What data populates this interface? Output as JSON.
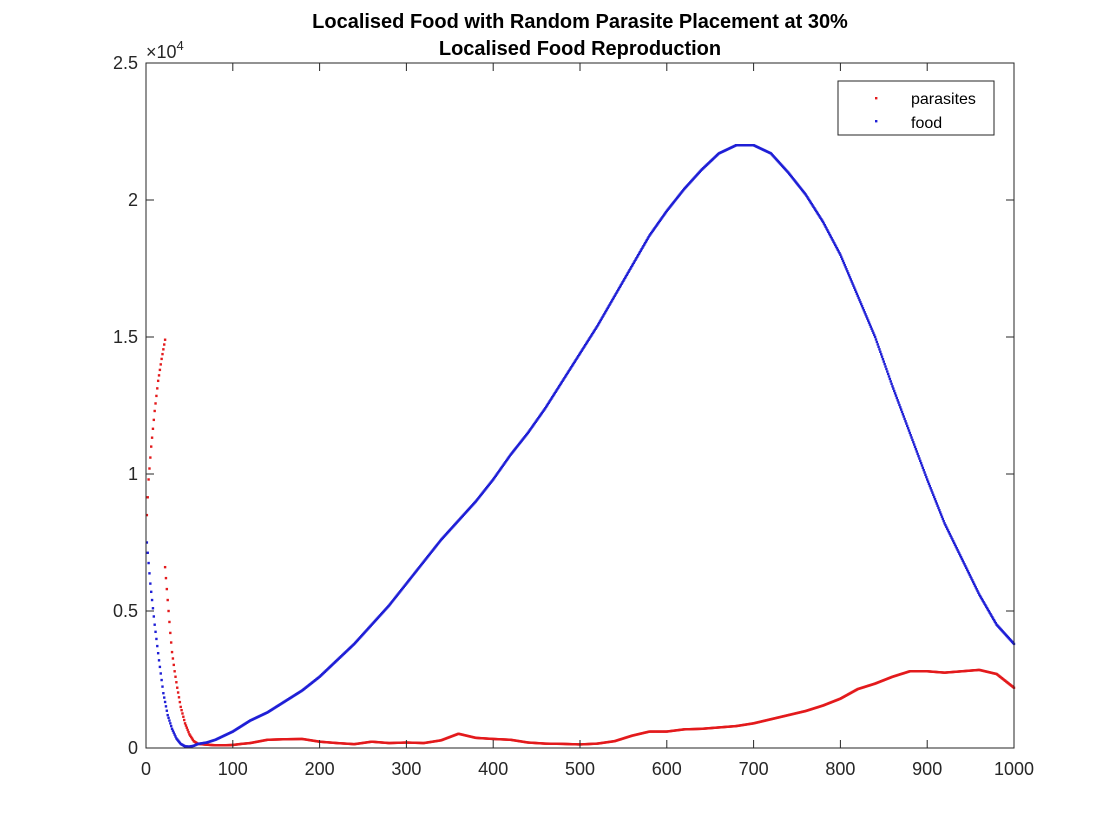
{
  "chart_data": {
    "type": "scatter",
    "title": "Localised Food with Random Parasite Placement at 30%",
    "subtitle": "Localised Food Reproduction",
    "xlabel": "",
    "ylabel": "",
    "xlim": [
      0,
      1000
    ],
    "ylim": [
      0,
      25000
    ],
    "x_ticks": [
      0,
      100,
      200,
      300,
      400,
      500,
      600,
      700,
      800,
      900,
      1000
    ],
    "x_tick_labels": [
      "0",
      "100",
      "200",
      "300",
      "400",
      "500",
      "600",
      "700",
      "800",
      "900",
      "1000"
    ],
    "y_ticks": [
      0,
      5000,
      10000,
      15000,
      20000,
      25000
    ],
    "y_tick_labels": [
      "0",
      "0.5",
      "1",
      "1.5",
      "2",
      "2.5"
    ],
    "y_exponent": {
      "base": "×10",
      "power": "4"
    },
    "grid": false,
    "legend_position": "top-right",
    "series": [
      {
        "name": "parasites",
        "color": "#e31a1c",
        "segments": [
          {
            "x": [
              1,
              3,
              6,
              10,
              14,
              18,
              22
            ],
            "y": [
              8500,
              9800,
              11000,
              12300,
              13400,
              14200,
              14900
            ]
          },
          {
            "x": [
              22,
              24,
              26,
              28,
              30,
              33,
              36,
              40,
              45,
              50,
              55,
              60,
              70,
              80,
              90,
              100,
              110,
              120,
              140,
              160,
              180,
              200,
              220,
              240,
              260,
              280,
              300,
              320,
              340,
              360,
              380,
              400,
              420,
              440,
              460,
              480,
              500,
              520,
              540,
              560,
              580,
              600,
              620,
              640,
              660,
              680,
              700,
              720,
              740,
              760,
              780,
              800,
              820,
              840,
              860,
              880,
              900,
              920,
              940,
              960,
              980,
              1000
            ],
            "y": [
              6600,
              5800,
              5000,
              4200,
              3500,
              2800,
              2200,
              1500,
              900,
              500,
              250,
              150,
              120,
              100,
              100,
              110,
              150,
              180,
              300,
              320,
              330,
              230,
              180,
              140,
              230,
              180,
              200,
              180,
              280,
              520,
              370,
              330,
              300,
              200,
              160,
              150,
              130,
              160,
              250,
              450,
              600,
              600,
              680,
              700,
              750,
              800,
              900,
              1050,
              1200,
              1350,
              1550,
              1800,
              2150,
              2350,
              2600,
              2800,
              2800,
              2750,
              2800,
              2850,
              2700,
              2200
            ]
          }
        ]
      },
      {
        "name": "food",
        "color": "#1f1fd6",
        "segments": [
          {
            "x": [
              1,
              5,
              10,
              15,
              20,
              25,
              30,
              35,
              40,
              45,
              50,
              55,
              60,
              70,
              80,
              90,
              100,
              110,
              120,
              140,
              160,
              180,
              200,
              220,
              240,
              260,
              280,
              300,
              320,
              340,
              360,
              380,
              400,
              420,
              440,
              460,
              480,
              500,
              520,
              540,
              560,
              580,
              600,
              620,
              640,
              660,
              680,
              700,
              720,
              740,
              760,
              780,
              800,
              820,
              840,
              860,
              880,
              900,
              920,
              940,
              960,
              980,
              1000
            ],
            "y": [
              7500,
              6000,
              4500,
              3200,
              2000,
              1200,
              700,
              350,
              150,
              60,
              50,
              80,
              150,
              200,
              300,
              450,
              600,
              800,
              1000,
              1300,
              1700,
              2100,
              2600,
              3200,
              3800,
              4500,
              5200,
              6000,
              6800,
              7600,
              8300,
              9000,
              9800,
              10700,
              11500,
              12400,
              13400,
              14400,
              15400,
              16500,
              17600,
              18700,
              19600,
              20400,
              21100,
              21700,
              22000,
              22000,
              21700,
              21000,
              20200,
              19200,
              18000,
              16500,
              15000,
              13200,
              11500,
              9800,
              8200,
              6900,
              5600,
              4500,
              3800
            ]
          }
        ]
      }
    ]
  }
}
